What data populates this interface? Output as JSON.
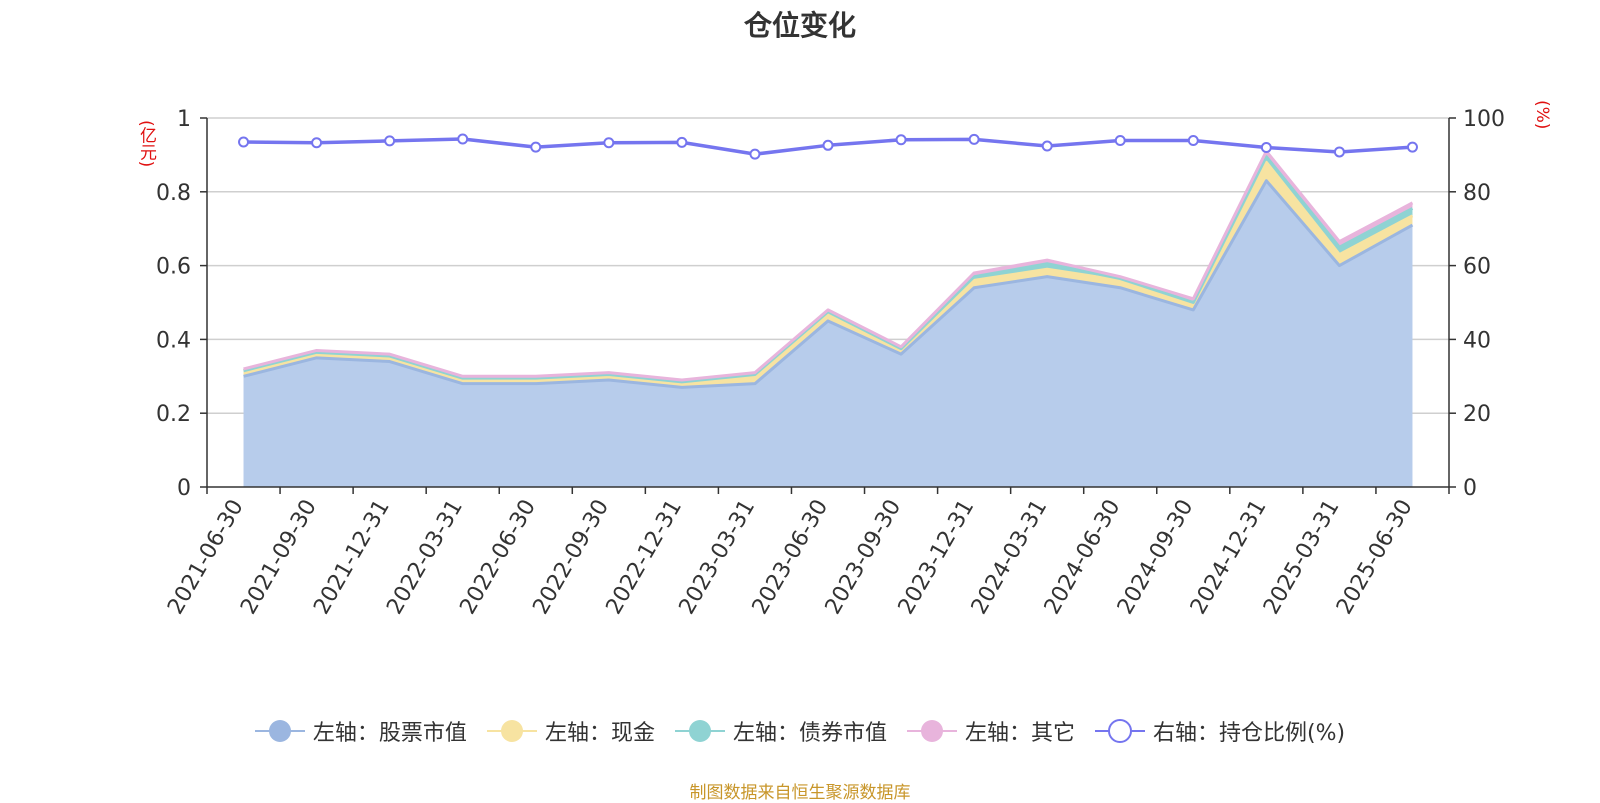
{
  "title": "仓位变化",
  "left_axis_unit": "(亿元)",
  "right_axis_unit": "(%)",
  "source_text": "制图数据来自恒生聚源数据库",
  "colors": {
    "stock": "#9bb6e0",
    "stock_fill": "#b7cceb",
    "cash": "#f7e3a1",
    "bond": "#8fd3d3",
    "other": "#e8b4dc",
    "ratio": "#7575ef",
    "axis_unit": "#e01010",
    "source": "#c8962a"
  },
  "legend": [
    {
      "key": "stock",
      "label": "左轴：股票市值",
      "icon": "filled-circle"
    },
    {
      "key": "cash",
      "label": "左轴：现金",
      "icon": "filled-circle"
    },
    {
      "key": "bond",
      "label": "左轴：债券市值",
      "icon": "filled-circle"
    },
    {
      "key": "other",
      "label": "左轴：其它",
      "icon": "filled-circle"
    },
    {
      "key": "ratio",
      "label": "右轴：持仓比例(%)",
      "icon": "hollow-circle"
    }
  ],
  "chart_data": {
    "type": "area",
    "categories": [
      "2021-06-30",
      "2021-09-30",
      "2021-12-31",
      "2022-03-31",
      "2022-06-30",
      "2022-09-30",
      "2022-12-31",
      "2023-03-31",
      "2023-06-30",
      "2023-09-30",
      "2023-12-31",
      "2024-03-31",
      "2024-06-30",
      "2024-09-30",
      "2024-12-31",
      "2025-03-31",
      "2025-06-30"
    ],
    "left_axis": {
      "ylim": [
        0,
        1
      ],
      "ticks": [
        "0",
        "0.2",
        "0.4",
        "0.6",
        "0.8",
        "1"
      ]
    },
    "right_axis": {
      "ylim": [
        0,
        100
      ],
      "ticks": [
        "0",
        "20",
        "40",
        "60",
        "80",
        "100"
      ]
    },
    "series": [
      {
        "name": "左轴：股票市值",
        "key": "stock",
        "stacked": true,
        "values": [
          0.3,
          0.35,
          0.34,
          0.28,
          0.28,
          0.29,
          0.27,
          0.28,
          0.45,
          0.36,
          0.54,
          0.57,
          0.54,
          0.48,
          0.83,
          0.6,
          0.71
        ]
      },
      {
        "name": "左轴：现金",
        "key": "cash",
        "stacked": true,
        "values": [
          0.015,
          0.015,
          0.015,
          0.015,
          0.015,
          0.015,
          0.015,
          0.02,
          0.02,
          0.015,
          0.02,
          0.02,
          0.02,
          0.02,
          0.05,
          0.03,
          0.025
        ]
      },
      {
        "name": "左轴：债券市值",
        "key": "bond",
        "stacked": true,
        "values": [
          0.0,
          0.0,
          0.0,
          0.0,
          0.0,
          0.0,
          0.0,
          0.005,
          0.005,
          0.0,
          0.01,
          0.015,
          0.005,
          0.0,
          0.015,
          0.02,
          0.02
        ]
      },
      {
        "name": "左轴：其它",
        "key": "other",
        "stacked": true,
        "values": [
          0.005,
          0.005,
          0.005,
          0.005,
          0.005,
          0.005,
          0.005,
          0.005,
          0.005,
          0.005,
          0.01,
          0.01,
          0.005,
          0.01,
          0.015,
          0.015,
          0.015
        ]
      },
      {
        "name": "右轴：持仓比例(%)",
        "key": "ratio",
        "axis": "right",
        "values": [
          93.5,
          93.3,
          93.8,
          94.3,
          92.1,
          93.3,
          93.4,
          90.2,
          92.6,
          94.1,
          94.2,
          92.4,
          93.9,
          93.9,
          92.0,
          90.8,
          92.1
        ]
      }
    ],
    "grid": true,
    "legend_position": "bottom"
  }
}
